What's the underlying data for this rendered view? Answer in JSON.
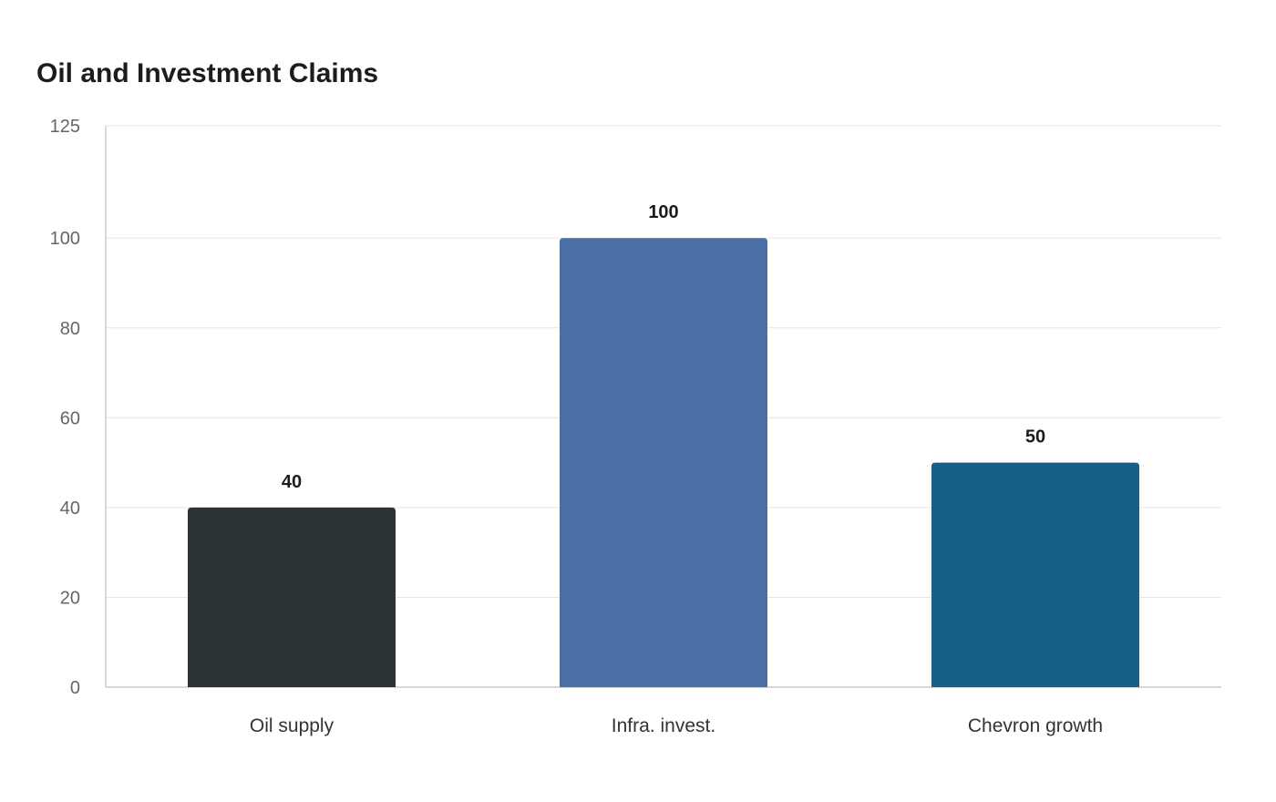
{
  "chart_data": {
    "type": "bar",
    "title": "Oil and Investment Claims",
    "xlabel": "",
    "ylabel": "",
    "categories": [
      "Oil supply",
      "Infra. invest.",
      "Chevron growth"
    ],
    "values": [
      40,
      100,
      50
    ],
    "ylim": [
      0,
      125
    ],
    "yticks": [
      0,
      20,
      40,
      60,
      80,
      100,
      125
    ],
    "bar_colors": [
      "#2d3436",
      "#4a6fa5",
      "#166088"
    ],
    "grid": true,
    "legend": "none",
    "data_labels": true
  }
}
